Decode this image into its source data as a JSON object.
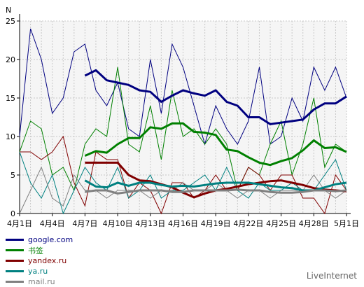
{
  "chart_data": {
    "type": "line",
    "ylabel": "N",
    "ylim": [
      0,
      25
    ],
    "yticks": [
      0,
      5,
      10,
      15,
      20,
      25
    ],
    "x_tick_labels": [
      "4月1日",
      "4月4日",
      "4月7日",
      "4月10日",
      "4月13日",
      "4月16日",
      "4月19日",
      "4月22日",
      "4月25日",
      "4月28日",
      "5月1日"
    ],
    "x": [
      "4月1日",
      "4月2日",
      "4月3日",
      "4月4日",
      "4月5日",
      "4月6日",
      "4月7日",
      "4月8日",
      "4月9日",
      "4月10日",
      "4月11日",
      "4月12日",
      "4月13日",
      "4月14日",
      "4月15日",
      "4月16日",
      "4月17日",
      "4月18日",
      "4月19日",
      "4月20日",
      "4月21日",
      "4月22日",
      "4月23日",
      "4月24日",
      "4月25日",
      "4月26日",
      "4月27日",
      "4月28日",
      "4月29日",
      "4月30日",
      "5月1日"
    ],
    "grid": true,
    "series": [
      {
        "name": "google.com",
        "color": "#000080",
        "values": [
          10,
          24,
          20,
          13,
          15,
          21,
          22,
          16,
          14,
          17,
          11,
          10,
          20,
          13,
          22,
          19,
          14,
          9,
          14,
          11,
          9,
          12,
          19,
          9,
          10,
          15,
          12,
          19,
          16,
          19,
          15
        ],
        "trend": [
          null,
          null,
          null,
          null,
          null,
          null,
          17.9,
          18.6,
          17.3,
          17.0,
          16.7,
          16.0,
          15.8,
          14.5,
          15.3,
          16.0,
          15.6,
          15.3,
          16.0,
          14.5,
          14.0,
          12.5,
          12.5,
          11.6,
          11.8,
          12.0,
          12.2,
          13.5,
          14.3,
          14.3,
          15.2
        ]
      },
      {
        "name": "书签",
        "color": "#008000",
        "values": [
          8,
          12,
          11,
          5,
          6,
          3,
          9,
          11,
          10,
          19,
          9,
          8,
          14,
          7,
          16,
          10,
          11,
          9,
          11,
          9,
          3,
          6,
          5,
          9,
          12,
          5,
          9,
          15,
          6,
          9,
          8
        ],
        "trend": [
          null,
          null,
          null,
          null,
          null,
          null,
          7.5,
          8.1,
          7.9,
          9.0,
          9.8,
          9.8,
          11.2,
          11.0,
          11.7,
          11.7,
          10.6,
          10.5,
          10.2,
          8.3,
          8.1,
          7.3,
          6.6,
          6.3,
          6.8,
          7.2,
          8.2,
          9.5,
          8.5,
          8.6,
          8.0
        ]
      },
      {
        "name": "yandex.ru",
        "color": "#800000",
        "values": [
          8,
          8,
          7,
          8,
          10,
          4,
          1,
          8,
          7,
          7,
          2,
          4,
          3,
          0,
          4,
          4,
          2,
          3,
          5,
          3,
          3,
          6,
          5,
          3,
          5,
          5,
          2,
          2,
          0,
          5,
          3
        ],
        "trend": [
          null,
          null,
          null,
          null,
          null,
          null,
          6.6,
          6.6,
          6.6,
          6.6,
          5.0,
          4.3,
          4.2,
          3.8,
          3.4,
          2.7,
          2.1,
          2.6,
          3.0,
          3.2,
          3.5,
          3.8,
          4.0,
          4.2,
          4.3,
          4.0,
          3.7,
          3.3,
          3.1,
          3.0,
          2.9
        ]
      },
      {
        "name": "ya.ru",
        "color": "#008080",
        "values": [
          8,
          4,
          2,
          5,
          0,
          3,
          6,
          4,
          3,
          6,
          2,
          3,
          5,
          2,
          3,
          3,
          4,
          5,
          3,
          6,
          3,
          2,
          4,
          3,
          3,
          4,
          3,
          3,
          5,
          7,
          3
        ],
        "trend": [
          null,
          null,
          null,
          null,
          null,
          null,
          4.3,
          3.5,
          3.4,
          4.0,
          3.6,
          4.0,
          4.0,
          3.7,
          3.5,
          3.6,
          3.5,
          3.7,
          3.9,
          4.0,
          4.0,
          4.0,
          3.8,
          3.6,
          3.4,
          3.3,
          3.0,
          3.0,
          3.4,
          3.8,
          4.0
        ]
      },
      {
        "name": "mail.ru",
        "color": "#808080",
        "values": [
          0,
          3,
          6,
          2,
          1,
          5,
          3,
          3,
          2,
          3,
          3,
          3,
          2,
          3,
          3,
          4,
          3,
          3,
          4,
          3,
          2,
          3,
          3,
          2,
          3,
          3,
          3,
          5,
          3,
          2,
          3
        ],
        "trend": [
          null,
          null,
          null,
          null,
          null,
          null,
          2.8,
          3.0,
          3.0,
          2.6,
          2.8,
          3.0,
          3.0,
          3.0,
          2.8,
          2.8,
          3.0,
          3.0,
          3.0,
          3.0,
          3.1,
          3.0,
          3.0,
          2.8,
          2.7,
          2.7,
          2.8,
          3.0,
          3.0,
          2.9,
          3.0
        ]
      }
    ]
  },
  "footer": {
    "brand": "LiveInternet"
  }
}
